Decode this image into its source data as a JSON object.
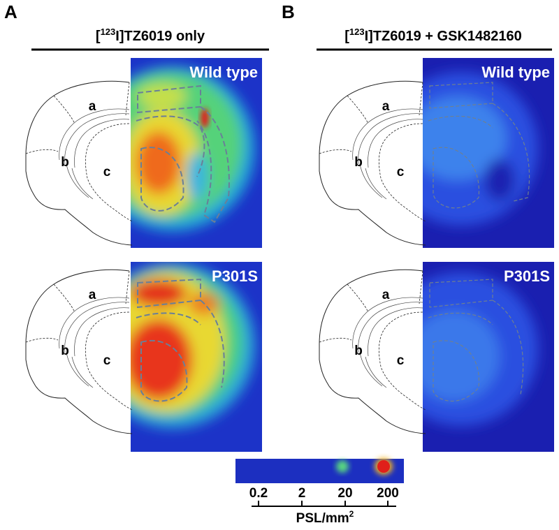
{
  "panels": [
    {
      "label": "A",
      "title": {
        "pre": "[",
        "sup": "123",
        "post": "I]TZ6019 only"
      },
      "images": [
        {
          "label": "Wild type"
        },
        {
          "label": "P301S"
        }
      ]
    },
    {
      "label": "B",
      "title": {
        "pre": "[",
        "sup": "123",
        "post": "I]TZ6019 + GSK1482160"
      },
      "images": [
        {
          "label": "Wild type"
        },
        {
          "label": "P301S"
        }
      ]
    }
  ],
  "regions": [
    "a",
    "b",
    "c"
  ],
  "scale": {
    "ticks": [
      "0.2",
      "2",
      "20",
      "200"
    ],
    "unit": {
      "text": "PSL/mm",
      "sup": "2"
    }
  }
}
